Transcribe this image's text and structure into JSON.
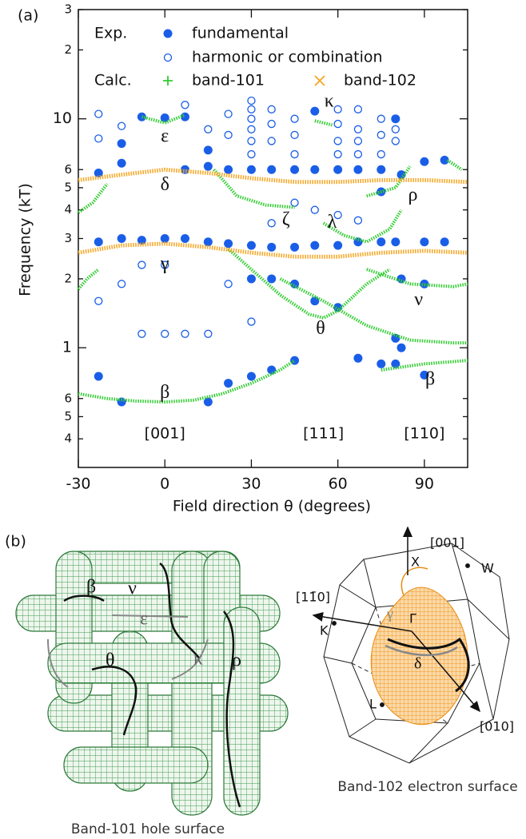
{
  "chart_data": {
    "type": "scatter",
    "panel_label": "(a)",
    "x_label": "Field direction θ (degrees)",
    "y_label": "Frequency (kT)",
    "xlim": [
      -30,
      105
    ],
    "xticks": [
      -30,
      0,
      30,
      60,
      90
    ],
    "ylim": [
      0.3,
      30
    ],
    "log_y": true,
    "yticks": [
      {
        "value": 0.4,
        "label": "4"
      },
      {
        "value": 0.5,
        "label": "5"
      },
      {
        "value": 0.6,
        "label": "6"
      },
      1,
      {
        "value": 2,
        "label": "2"
      },
      {
        "value": 3,
        "label": "3"
      },
      {
        "value": 4,
        "label": "4"
      },
      {
        "value": 5,
        "label": "5"
      },
      {
        "value": 6,
        "label": "6"
      },
      10,
      {
        "value": 20,
        "label": "2"
      },
      {
        "value": 30,
        "label": "3"
      }
    ],
    "legend_groups": [
      "Exp.",
      "Calc."
    ],
    "legend": "upper left",
    "series": [
      {
        "name": "fundamental",
        "color": "#1a5ee8",
        "marker": "filled",
        "x": [
          -23,
          -23,
          -23,
          -15,
          -15,
          -15,
          -15,
          -8,
          -8,
          0,
          0,
          7,
          7,
          7,
          15,
          15,
          15,
          15,
          22,
          22,
          22,
          30,
          30,
          30,
          30,
          37,
          37,
          37,
          37,
          45,
          45,
          45,
          45,
          52,
          52,
          52,
          52,
          60,
          60,
          60,
          67,
          67,
          67,
          75,
          75,
          75,
          75,
          80,
          80,
          80,
          80,
          82,
          82,
          82,
          90,
          90,
          90,
          90,
          97,
          97
        ],
        "values": [
          2.9,
          5.8,
          0.75,
          7.8,
          6.4,
          3.0,
          0.58,
          10.2,
          2.95,
          10.1,
          3.0,
          10.2,
          6.0,
          3.0,
          7.3,
          6.2,
          2.9,
          0.58,
          6.0,
          2.85,
          0.7,
          6.0,
          2.8,
          2.0,
          0.75,
          6.0,
          2.75,
          2.0,
          0.8,
          6.0,
          2.75,
          1.9,
          0.88,
          10.8,
          6.0,
          2.8,
          1.6,
          6.0,
          2.8,
          1.5,
          6.0,
          2.9,
          0.9,
          6.0,
          2.9,
          0.85,
          4.8,
          10.0,
          2.9,
          1.1,
          0.85,
          5.7,
          1.0,
          2.0,
          6.5,
          2.9,
          1.9,
          0.76,
          6.6,
          2.9
        ]
      },
      {
        "name": "harmonic or combination",
        "color": "#1a5ee8",
        "marker": "open",
        "x": [
          -23,
          -23,
          -23,
          -15,
          -15,
          -8,
          -8,
          0,
          0,
          7,
          7,
          15,
          15,
          22,
          22,
          22,
          30,
          30,
          30,
          30,
          30,
          30,
          30,
          37,
          37,
          37,
          37,
          45,
          45,
          45,
          45,
          52,
          60,
          60,
          60,
          60,
          60,
          67,
          67,
          67,
          67,
          67,
          75,
          75,
          75,
          80,
          80
        ],
        "values": [
          10.5,
          8.2,
          1.6,
          9.3,
          1.9,
          2.3,
          1.15,
          1.15,
          2.3,
          11.5,
          1.15,
          9.0,
          1.15,
          10.5,
          8.5,
          1.9,
          12.0,
          11.0,
          10.0,
          9.0,
          8.0,
          7.0,
          1.3,
          11.0,
          9.5,
          8.0,
          3.5,
          10.0,
          8.5,
          7.0,
          4.3,
          4.0,
          11.0,
          9.5,
          8.0,
          7.0,
          3.8,
          11.0,
          9.0,
          8.0,
          7.0,
          3.6,
          10.0,
          8.5,
          7.0,
          9.0,
          8.0
        ]
      },
      {
        "name": "band-101",
        "color": "#33cc33",
        "marker": "plus",
        "x": [
          -30,
          -20,
          -10,
          0,
          10,
          20,
          30,
          40,
          45,
          null,
          75,
          90,
          105,
          null,
          -30,
          -27,
          -23,
          null,
          22,
          30,
          40,
          50,
          55,
          60,
          70,
          78,
          null,
          40,
          55,
          70,
          85,
          100,
          105,
          null,
          70,
          85,
          100,
          105,
          null,
          -8,
          0,
          7,
          null,
          -30,
          -25,
          -20,
          null,
          17,
          25,
          35,
          45,
          null,
          55,
          62,
          70,
          78,
          82,
          null,
          70,
          80,
          85,
          null,
          52,
          58,
          null,
          98,
          103
        ],
        "values": [
          0.63,
          0.6,
          0.585,
          0.58,
          0.59,
          0.63,
          0.7,
          0.8,
          0.88,
          null,
          0.8,
          0.85,
          0.88,
          null,
          1.8,
          2.0,
          2.2,
          null,
          2.7,
          2.2,
          1.7,
          1.4,
          1.35,
          1.45,
          1.9,
          2.2,
          null,
          2.0,
          1.6,
          1.25,
          1.08,
          1.05,
          1.05,
          null,
          2.2,
          1.9,
          1.85,
          1.9,
          null,
          10.2,
          9.6,
          10.4,
          null,
          3.9,
          4.3,
          5.2,
          null,
          6.0,
          4.6,
          4.2,
          4.1,
          null,
          3.5,
          3.1,
          2.9,
          3.3,
          4.0,
          null,
          4.6,
          5.0,
          6.2,
          null,
          9.8,
          9.4,
          null,
          6.6,
          6.0
        ]
      },
      {
        "name": "band-102",
        "color": "#f5a623",
        "marker": "cross",
        "x": [
          -30,
          -15,
          0,
          15,
          30,
          45,
          60,
          75,
          90,
          105,
          null,
          -30,
          -15,
          0,
          15,
          30,
          45,
          60,
          75,
          90,
          105
        ],
        "values": [
          5.4,
          5.7,
          6.0,
          5.8,
          5.5,
          5.3,
          5.3,
          5.4,
          5.4,
          5.3,
          null,
          2.6,
          2.8,
          2.85,
          2.75,
          2.6,
          2.5,
          2.5,
          2.6,
          2.65,
          2.6
        ]
      }
    ],
    "annotations": [
      "ε",
      "δ",
      "γ",
      "β",
      "ζ",
      "κ",
      "λ",
      "ρ",
      "θ",
      "ν",
      "β",
      "[001]",
      "[111]",
      "[110]"
    ]
  },
  "panel_b": {
    "label": "(b)",
    "hole_surface": {
      "caption": "Band-101 hole surface",
      "orbit_labels": [
        "β",
        "ν",
        "ε",
        "θ",
        "κ",
        "ρ"
      ]
    },
    "electron_surface": {
      "caption": "Band-102 electron surface",
      "labels": [
        "[001]",
        "X",
        "W",
        "[11̄0]",
        "K",
        "Γ",
        "γ",
        "δ",
        "L",
        "[010]"
      ]
    }
  }
}
